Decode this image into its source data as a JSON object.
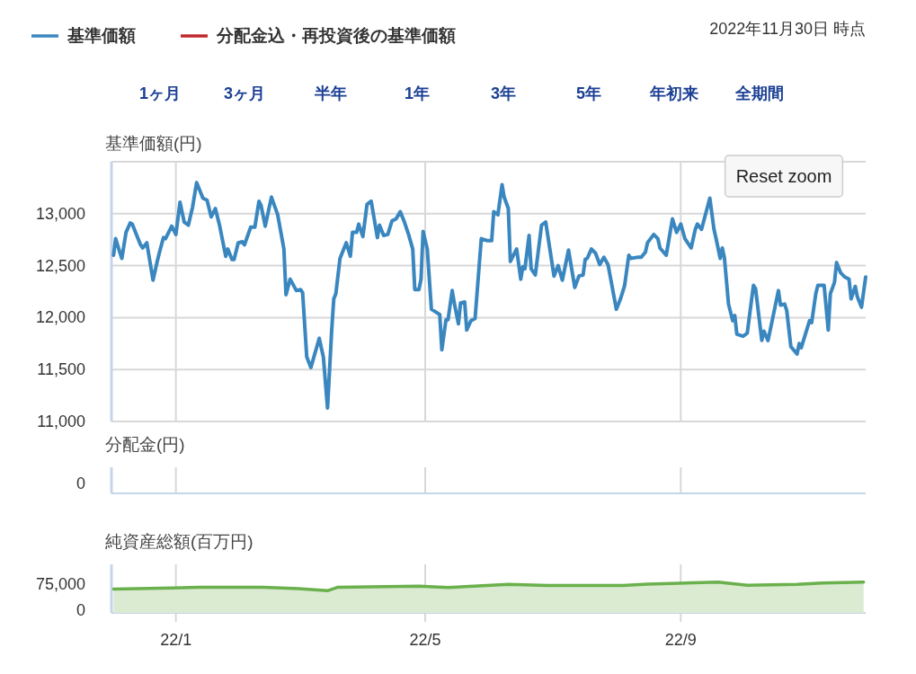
{
  "chart_data": [
    {
      "type": "line",
      "ylabel": "基準価額(円)",
      "legend": "top left",
      "grid": true,
      "tick_labels": "y",
      "annotations": [
        "2022年11月30日 時点",
        "1ヶ月",
        "3ヶ月",
        "半年",
        "1年",
        "3年",
        "5年",
        "年初来",
        "全期間",
        "Reset zoom"
      ],
      "xlim": [
        "2021-12-01",
        "2022-11-29"
      ],
      "xticks": [
        {
          "value": "2022-01-01",
          "label": null
        },
        {
          "value": "2022-05-01",
          "label": null
        },
        {
          "value": "2022-09-01",
          "label": null
        }
      ],
      "ylim": [
        11000,
        13500
      ],
      "yticks": [
        {
          "value": 11000,
          "label": "11,000"
        },
        {
          "value": 11500,
          "label": "11,500"
        },
        {
          "value": 12000,
          "label": "12,000"
        },
        {
          "value": 12500,
          "label": "12,500"
        },
        {
          "value": 13000,
          "label": "13,000"
        },
        {
          "value": 13500,
          "label": null
        }
      ],
      "x": [
        "2021-12-02",
        "2021-12-03",
        "2021-12-05",
        "2021-12-06",
        "2021-12-08",
        "2021-12-10",
        "2021-12-11",
        "2021-12-15",
        "2021-12-16",
        "2021-12-18",
        "2021-12-19",
        "2021-12-21",
        "2021-12-23",
        "2021-12-24",
        "2021-12-26",
        "2021-12-27",
        "2021-12-30",
        "2022-01-01",
        "2022-01-03",
        "2022-01-05",
        "2022-01-07",
        "2022-01-09",
        "2022-01-11",
        "2022-01-14",
        "2022-01-16",
        "2022-01-18",
        "2022-01-20",
        "2022-01-22",
        "2022-01-25",
        "2022-01-26",
        "2022-01-28",
        "2022-01-29",
        "2022-01-31",
        "2022-02-02",
        "2022-02-03",
        "2022-02-06",
        "2022-02-08",
        "2022-02-10",
        "2022-02-11",
        "2022-02-13",
        "2022-02-16",
        "2022-02-19",
        "2022-02-22",
        "2022-02-23",
        "2022-02-25",
        "2022-02-28",
        "2022-03-02",
        "2022-03-03",
        "2022-03-05",
        "2022-03-07",
        "2022-03-11",
        "2022-03-13",
        "2022-03-15",
        "2022-03-17",
        "2022-03-18",
        "2022-03-19",
        "2022-03-21",
        "2022-03-24",
        "2022-03-26",
        "2022-03-27",
        "2022-03-29",
        "2022-03-30",
        "2022-04-01",
        "2022-04-03",
        "2022-04-05",
        "2022-04-08",
        "2022-04-09",
        "2022-04-11",
        "2022-04-13",
        "2022-04-15",
        "2022-04-17",
        "2022-04-19",
        "2022-04-21",
        "2022-04-23",
        "2022-04-25",
        "2022-04-26",
        "2022-04-28",
        "2022-04-29",
        "2022-04-30",
        "2022-05-02",
        "2022-05-04",
        "2022-05-08",
        "2022-05-09",
        "2022-05-11",
        "2022-05-12",
        "2022-05-14",
        "2022-05-15",
        "2022-05-17",
        "2022-05-18",
        "2022-05-20",
        "2022-05-21",
        "2022-05-23",
        "2022-05-25",
        "2022-05-28",
        "2022-05-31",
        "2022-06-02",
        "2022-06-03",
        "2022-06-05",
        "2022-06-07",
        "2022-06-08",
        "2022-06-10",
        "2022-06-11",
        "2022-06-14",
        "2022-06-16",
        "2022-06-17",
        "2022-06-18",
        "2022-06-20",
        "2022-06-21",
        "2022-06-23",
        "2022-06-26",
        "2022-06-28",
        "2022-06-29",
        "2022-07-02",
        "2022-07-04",
        "2022-07-06",
        "2022-07-09",
        "2022-07-12",
        "2022-07-14",
        "2022-07-16",
        "2022-07-17",
        "2022-07-18",
        "2022-07-20",
        "2022-07-22",
        "2022-07-24",
        "2022-07-26",
        "2022-07-28",
        "2022-08-01",
        "2022-08-03",
        "2022-08-05",
        "2022-08-07",
        "2022-08-08",
        "2022-08-11",
        "2022-08-13",
        "2022-08-15",
        "2022-08-16",
        "2022-08-19",
        "2022-08-21",
        "2022-08-22",
        "2022-08-25",
        "2022-08-28",
        "2022-08-30",
        "2022-09-01",
        "2022-09-03",
        "2022-09-06",
        "2022-09-08",
        "2022-09-09",
        "2022-09-11",
        "2022-09-15",
        "2022-09-17",
        "2022-09-18",
        "2022-09-20",
        "2022-09-21",
        "2022-09-22",
        "2022-09-24",
        "2022-09-26",
        "2022-09-27",
        "2022-09-28",
        "2022-10-01",
        "2022-10-03",
        "2022-10-06",
        "2022-10-07",
        "2022-10-10",
        "2022-10-11",
        "2022-10-13",
        "2022-10-15",
        "2022-10-18",
        "2022-10-19",
        "2022-10-21",
        "2022-10-22",
        "2022-10-24",
        "2022-10-27",
        "2022-10-28",
        "2022-10-29",
        "2022-10-31",
        "2022-11-02",
        "2022-11-03",
        "2022-11-05",
        "2022-11-06",
        "2022-11-09",
        "2022-11-11",
        "2022-11-12",
        "2022-11-14",
        "2022-11-15",
        "2022-11-17",
        "2022-11-19",
        "2022-11-21",
        "2022-11-22",
        "2022-11-24",
        "2022-11-25",
        "2022-11-27",
        "2022-11-29"
      ],
      "series": [
        {
          "name": "基準価額",
          "color": "#3a87c0",
          "values": [
            12600,
            12760,
            12630,
            12570,
            12820,
            12910,
            12900,
            12700,
            12670,
            12720,
            12600,
            12360,
            12540,
            12620,
            12770,
            12760,
            12880,
            12800,
            13110,
            12920,
            12890,
            13060,
            13300,
            13150,
            13130,
            12970,
            13050,
            12890,
            12590,
            12660,
            12560,
            12560,
            12720,
            12730,
            12700,
            12870,
            12870,
            13120,
            13080,
            12880,
            13160,
            12990,
            12660,
            12220,
            12370,
            12260,
            12270,
            12240,
            11620,
            11520,
            11800,
            11620,
            11130,
            11880,
            12180,
            12230,
            12570,
            12720,
            12590,
            12820,
            12820,
            12900,
            12780,
            13090,
            13120,
            12770,
            12890,
            12790,
            12800,
            12930,
            12950,
            13020,
            12920,
            12800,
            12660,
            12270,
            12270,
            12370,
            12830,
            12660,
            12080,
            12030,
            11690,
            11980,
            11980,
            12260,
            12140,
            11940,
            12140,
            12150,
            11880,
            11970,
            11990,
            12760,
            12740,
            12740,
            13020,
            12990,
            13280,
            13160,
            13050,
            12540,
            12660,
            12370,
            12490,
            12470,
            12790,
            12470,
            12410,
            12890,
            12920,
            12790,
            12400,
            12500,
            12360,
            12650,
            12290,
            12400,
            12410,
            12560,
            12570,
            12660,
            12620,
            12510,
            12580,
            12510,
            12080,
            12180,
            12310,
            12600,
            12570,
            12580,
            12580,
            12630,
            12720,
            12800,
            12760,
            12670,
            12600,
            12950,
            12820,
            12900,
            12760,
            12670,
            12850,
            12900,
            12850,
            13150,
            12850,
            12760,
            12570,
            12670,
            12580,
            12130,
            11970,
            12020,
            11840,
            11820,
            11850,
            12310,
            12280,
            11780,
            11870,
            11780,
            11970,
            12260,
            12120,
            12130,
            12070,
            11720,
            11650,
            11750,
            11710,
            11840,
            11970,
            11950,
            12230,
            12310,
            12310,
            11880,
            12230,
            12340,
            12530,
            12430,
            12390,
            12370,
            12180,
            12300,
            12200,
            12100,
            12390
          ]
        },
        {
          "name": "分配金込・再投資後の基準価額",
          "color": "#c0282d",
          "values": [
            null,
            null,
            null,
            null,
            null,
            null,
            null,
            null,
            null,
            null,
            null,
            null,
            null,
            null,
            null,
            null,
            null,
            null,
            null,
            null,
            null,
            null,
            null,
            null,
            null,
            null,
            null,
            null,
            null,
            null,
            null,
            null,
            null,
            null,
            null,
            null,
            null,
            null,
            null,
            null,
            null,
            null,
            null,
            null,
            null,
            null,
            null,
            null,
            null,
            null,
            null,
            null,
            null,
            null,
            null,
            null,
            null,
            null,
            null,
            null,
            null,
            null,
            null,
            null,
            null,
            null,
            null,
            null,
            null,
            null,
            null,
            null,
            null,
            null,
            null,
            null,
            null,
            null,
            null,
            null,
            null,
            null,
            null,
            null,
            null,
            null,
            null,
            null,
            null,
            null,
            null,
            null,
            null,
            null,
            null,
            null,
            null,
            null,
            null,
            null,
            null,
            null,
            null,
            null,
            null,
            null,
            null,
            null,
            null,
            null,
            null,
            null,
            null,
            null,
            null,
            null,
            null,
            null,
            null,
            null,
            null,
            null,
            null,
            null,
            null,
            null,
            null,
            null,
            null,
            null,
            null,
            null,
            null,
            null,
            null,
            null,
            null,
            null,
            null,
            null,
            null,
            null,
            null,
            null,
            null,
            null,
            null,
            null,
            null,
            null,
            null,
            null,
            null,
            null,
            null,
            null,
            null,
            null,
            null,
            null,
            null,
            null,
            null,
            null,
            null,
            null,
            null,
            null,
            null,
            null,
            null,
            null,
            null,
            null,
            null,
            null,
            null,
            null,
            null,
            null,
            null,
            null,
            null,
            null,
            null,
            null,
            null,
            null,
            null,
            null,
            null
          ]
        }
      ]
    },
    {
      "type": "other",
      "ylabel": "分配金(円)",
      "annotations": [
        "0"
      ]
    },
    {
      "type": "area",
      "ylabel": "純資産総額(百万円)",
      "grid": "x",
      "color": "#6ab04c",
      "xlim": [
        "2021-12-01",
        "2022-11-29"
      ],
      "xticks": [
        {
          "value": "2022-01-01",
          "label": "22/1"
        },
        {
          "value": "2022-05-01",
          "label": "22/5"
        },
        {
          "value": "2022-09-01",
          "label": "22/9"
        }
      ],
      "ylim": [
        -8000,
        132000
      ],
      "yticks": [
        {
          "value": 0,
          "label": "0"
        },
        {
          "value": 75000,
          "label": "75,000"
        }
      ],
      "x": [
        "2021-12-02",
        "2021-12-31",
        "2022-01-12",
        "2022-02-12",
        "2022-03-01",
        "2022-03-15",
        "2022-03-20",
        "2022-04-28",
        "2022-05-12",
        "2022-06-10",
        "2022-06-29",
        "2022-08-04",
        "2022-08-16",
        "2022-09-19",
        "2022-10-03",
        "2022-10-27",
        "2022-11-08",
        "2022-11-28"
      ],
      "values": [
        61000,
        64000,
        66000,
        66000,
        62000,
        56000,
        66000,
        69000,
        65000,
        74000,
        71000,
        71000,
        75000,
        81000,
        72000,
        74000,
        78000,
        81000
      ]
    }
  ]
}
